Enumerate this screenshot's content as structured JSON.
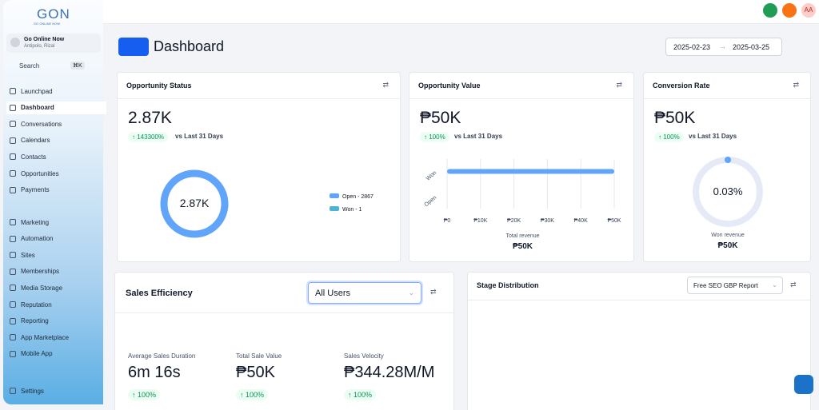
{
  "sidebar": {
    "brand": "GON",
    "brand_sub": "GO ONLINE NOW",
    "account": {
      "name": "Go Online Now",
      "location": "Antipolo, Rizal"
    },
    "search": {
      "placeholder": "Search",
      "shortcut": "⌘K"
    },
    "nav": [
      [
        "Launchpad",
        "Dashboard",
        "Conversations",
        "Calendars",
        "Contacts",
        "Opportunities",
        "Payments"
      ],
      [
        "Marketing",
        "Automation",
        "Sites",
        "Memberships",
        "Media Storage",
        "Reputation",
        "Reporting",
        "App Marketplace",
        "Mobile App"
      ]
    ],
    "active": "Dashboard",
    "settings": "Settings"
  },
  "topbar": {
    "avatar": "AA"
  },
  "header": {
    "title": "Dashboard",
    "date_from": "2025-02-23",
    "date_to": "2025-03-25"
  },
  "opportunity_status": {
    "title": "Opportunity Status",
    "value": "2.87K",
    "change": "↑ 143300%",
    "period": "vs Last 31 Days",
    "center": "2.87K",
    "legend": [
      "Open - 2867",
      "Won - 1"
    ]
  },
  "opportunity_value": {
    "title": "Opportunity Value",
    "value": "₱50K",
    "change": "↑ 100%",
    "period": "vs Last 31 Days",
    "chart": {
      "type": "bar",
      "categories": [
        "Won",
        "Open"
      ],
      "values": [
        50000,
        0
      ],
      "xlim": [
        0,
        50000
      ],
      "xticks": [
        {
          "value": 0,
          "label": "₱0"
        },
        {
          "value": 10000,
          "label": "₱10K"
        },
        {
          "value": 20000,
          "label": "₱20K"
        },
        {
          "value": 30000,
          "label": "₱30K"
        },
        {
          "value": 40000,
          "label": "₱40K"
        },
        {
          "value": 50000,
          "label": "₱50K"
        }
      ],
      "color": "#60a5fa",
      "xlabel": "Total revenue"
    },
    "total": "₱50K"
  },
  "conversion_rate": {
    "title": "Conversion Rate",
    "value": "₱50K",
    "change": "↑ 100%",
    "period": "vs Last 31 Days",
    "gauge": {
      "value": 0.03,
      "value_label": "0.03%",
      "max": 100,
      "color": "#60a5fa"
    },
    "caption": "Won revenue",
    "total": "₱50K"
  },
  "sales_efficiency": {
    "title": "Sales Efficiency",
    "filter": "All Users",
    "metrics": [
      {
        "label": "Average Sales Duration",
        "value": "6m 16s",
        "change": "↑ 100%"
      },
      {
        "label": "Total Sale Value",
        "value": "₱50K",
        "change": "↑ 100%"
      },
      {
        "label": "Sales Velocity",
        "value": "₱344.28M/M",
        "change": "↑ 100%"
      }
    ]
  },
  "stage_distribution": {
    "title": "Stage Distribution",
    "filter": "Free SEO GBP Report"
  }
}
